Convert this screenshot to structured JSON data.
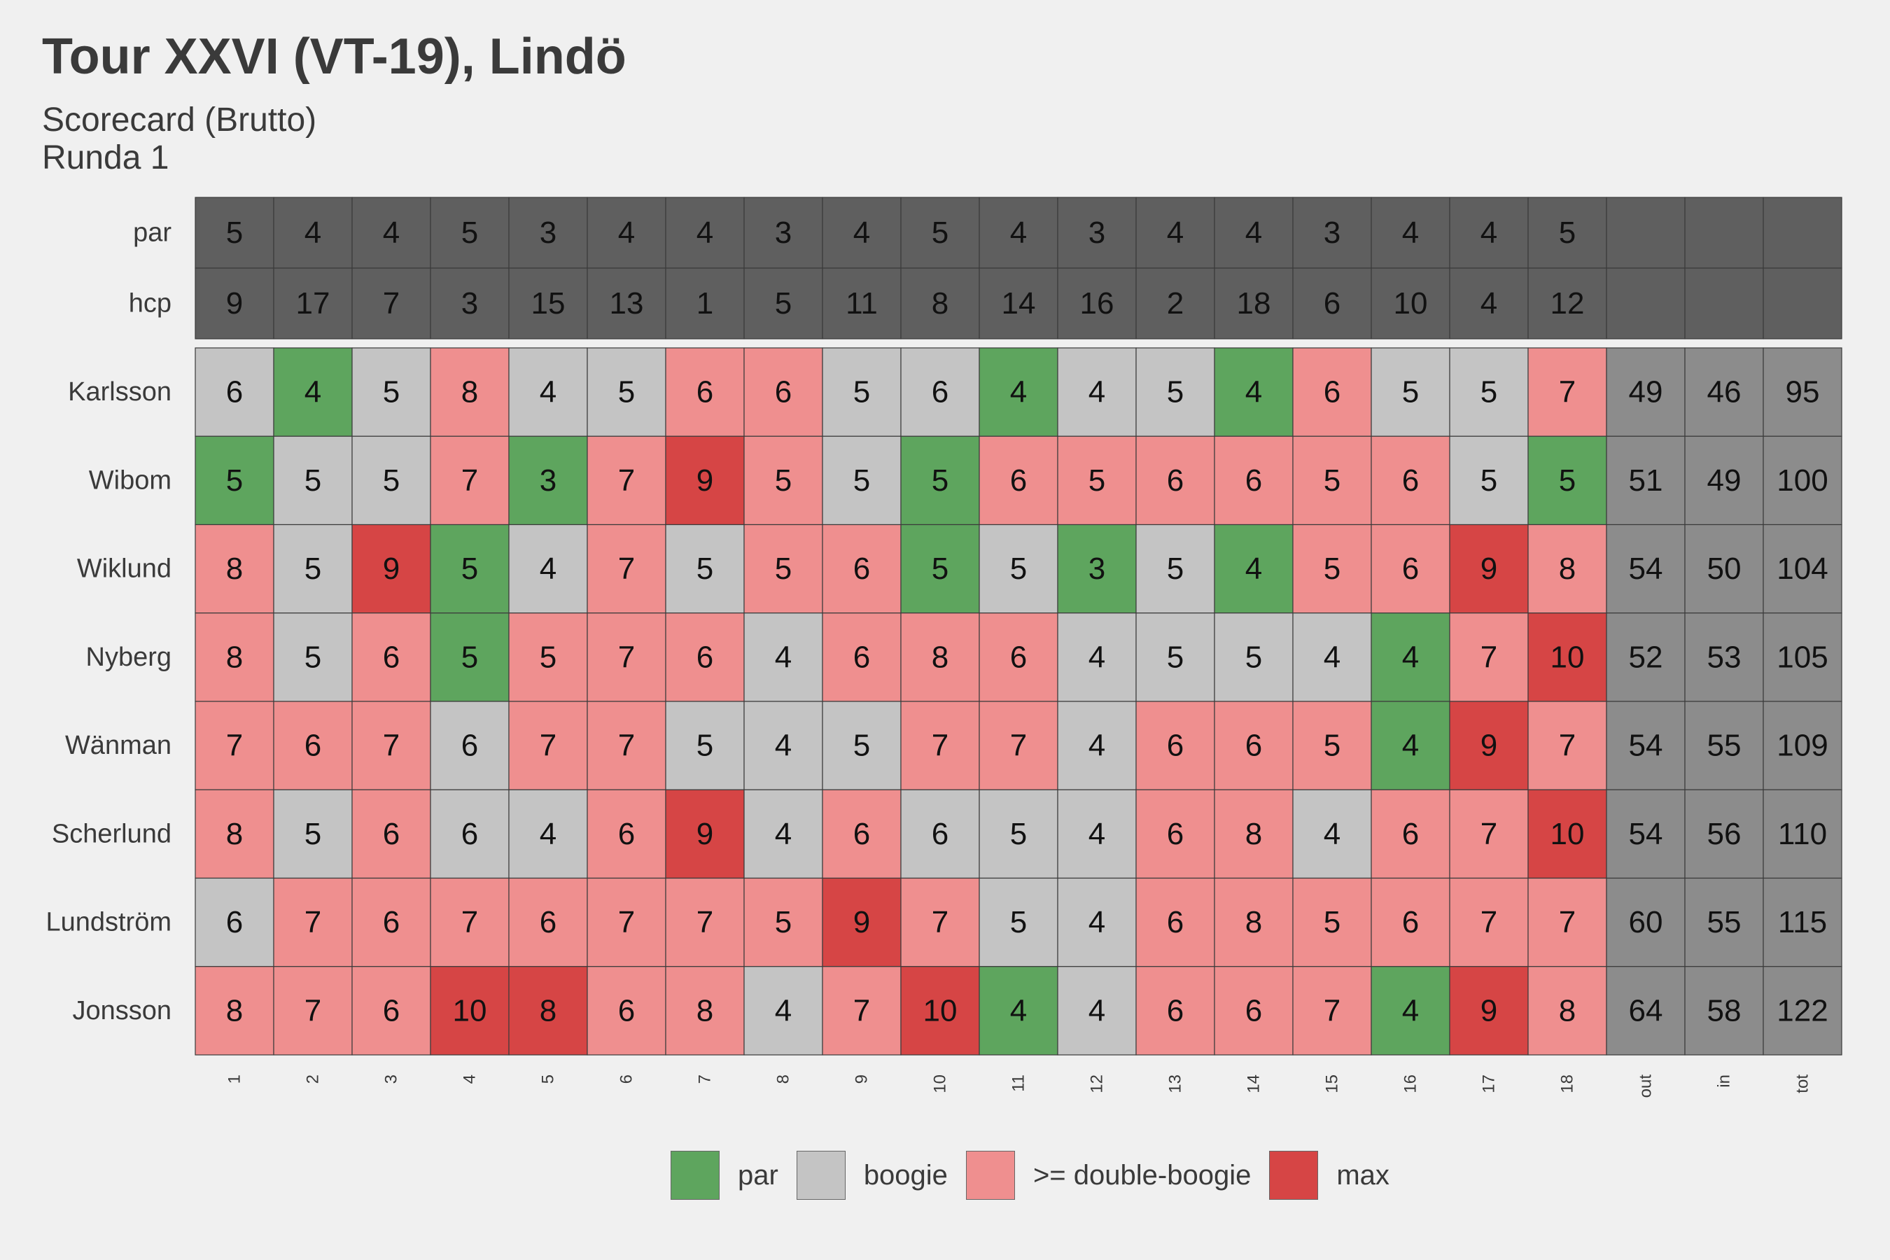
{
  "title": "Tour XXVI (VT-19), Lindö",
  "subtitle_line1": "Scorecard (Brutto)",
  "subtitle_line2": "Runda 1",
  "colors": {
    "par": "#5ea55e",
    "boogie": "#c4c4c4",
    "double_boogie": "#ef8f8f",
    "max": "#d64545",
    "header": "#5f5f5f",
    "totals": "#8c8c8c"
  },
  "legend": [
    {
      "key": "par",
      "label": "par"
    },
    {
      "key": "boogie",
      "label": "boogie"
    },
    {
      "key": "double_boogie",
      "label": ">= double-boogie"
    },
    {
      "key": "max",
      "label": "max"
    }
  ],
  "chart_data": {
    "type": "heatmap",
    "columns": [
      "1",
      "2",
      "3",
      "4",
      "5",
      "6",
      "7",
      "8",
      "9",
      "10",
      "11",
      "12",
      "13",
      "14",
      "15",
      "16",
      "17",
      "18",
      "out",
      "in",
      "tot"
    ],
    "par_label": "par",
    "hcp_label": "hcp",
    "par": [
      5,
      4,
      4,
      5,
      3,
      4,
      4,
      3,
      4,
      5,
      4,
      3,
      4,
      4,
      3,
      4,
      4,
      5
    ],
    "hcp": [
      9,
      17,
      7,
      3,
      15,
      13,
      1,
      5,
      11,
      8,
      14,
      16,
      2,
      18,
      6,
      10,
      4,
      12
    ],
    "players": [
      {
        "name": "Karlsson",
        "scores": [
          6,
          4,
          5,
          8,
          4,
          5,
          6,
          6,
          5,
          6,
          4,
          4,
          5,
          4,
          6,
          5,
          5,
          7
        ],
        "out": 49,
        "in": 46,
        "tot": 95
      },
      {
        "name": "Wibom",
        "scores": [
          5,
          5,
          5,
          7,
          3,
          7,
          9,
          5,
          5,
          5,
          6,
          5,
          6,
          6,
          5,
          6,
          5,
          5
        ],
        "out": 51,
        "in": 49,
        "tot": 100
      },
      {
        "name": "Wiklund",
        "scores": [
          8,
          5,
          9,
          5,
          4,
          7,
          5,
          5,
          6,
          5,
          5,
          3,
          5,
          4,
          5,
          6,
          9,
          8
        ],
        "out": 54,
        "in": 50,
        "tot": 104
      },
      {
        "name": "Nyberg",
        "scores": [
          8,
          5,
          6,
          5,
          5,
          7,
          6,
          4,
          6,
          8,
          6,
          4,
          5,
          5,
          4,
          4,
          7,
          10
        ],
        "out": 52,
        "in": 53,
        "tot": 105
      },
      {
        "name": "Wänman",
        "scores": [
          7,
          6,
          7,
          6,
          7,
          7,
          5,
          4,
          5,
          7,
          7,
          4,
          6,
          6,
          5,
          4,
          9,
          7
        ],
        "out": 54,
        "in": 55,
        "tot": 109
      },
      {
        "name": "Scherlund",
        "scores": [
          8,
          5,
          6,
          6,
          4,
          6,
          9,
          4,
          6,
          6,
          5,
          4,
          6,
          8,
          4,
          6,
          7,
          10
        ],
        "out": 54,
        "in": 56,
        "tot": 110
      },
      {
        "name": "Lundström",
        "scores": [
          6,
          7,
          6,
          7,
          6,
          7,
          7,
          5,
          9,
          7,
          5,
          4,
          6,
          8,
          5,
          6,
          7,
          7
        ],
        "out": 60,
        "in": 55,
        "tot": 115
      },
      {
        "name": "Jonsson",
        "scores": [
          8,
          7,
          6,
          10,
          8,
          6,
          8,
          4,
          7,
          10,
          4,
          4,
          6,
          6,
          7,
          4,
          9,
          8
        ],
        "out": 64,
        "in": 58,
        "tot": 122
      }
    ],
    "categories": [
      [
        1,
        3,
        1,
        2,
        1,
        1,
        2,
        2,
        1,
        1,
        3,
        1,
        1,
        3,
        2,
        1,
        1,
        2
      ],
      [
        3,
        1,
        1,
        2,
        3,
        2,
        4,
        2,
        1,
        3,
        2,
        2,
        2,
        2,
        2,
        2,
        1,
        3
      ],
      [
        2,
        1,
        4,
        3,
        1,
        2,
        1,
        2,
        2,
        3,
        1,
        3,
        1,
        3,
        2,
        2,
        4,
        2
      ],
      [
        2,
        1,
        2,
        3,
        2,
        2,
        2,
        1,
        2,
        2,
        2,
        1,
        1,
        1,
        1,
        3,
        2,
        4
      ],
      [
        2,
        2,
        2,
        1,
        2,
        2,
        1,
        1,
        1,
        2,
        2,
        1,
        2,
        2,
        2,
        3,
        4,
        2
      ],
      [
        2,
        1,
        2,
        1,
        1,
        2,
        4,
        1,
        2,
        1,
        1,
        1,
        2,
        2,
        1,
        2,
        2,
        4
      ],
      [
        1,
        2,
        2,
        2,
        2,
        2,
        2,
        2,
        4,
        2,
        1,
        1,
        2,
        2,
        2,
        2,
        2,
        2
      ],
      [
        2,
        2,
        2,
        4,
        4,
        2,
        2,
        1,
        2,
        4,
        3,
        1,
        2,
        2,
        2,
        3,
        4,
        2
      ]
    ],
    "category_legend": [
      "",
      "boogie",
      ">= double-boogie",
      "par",
      "max"
    ]
  }
}
